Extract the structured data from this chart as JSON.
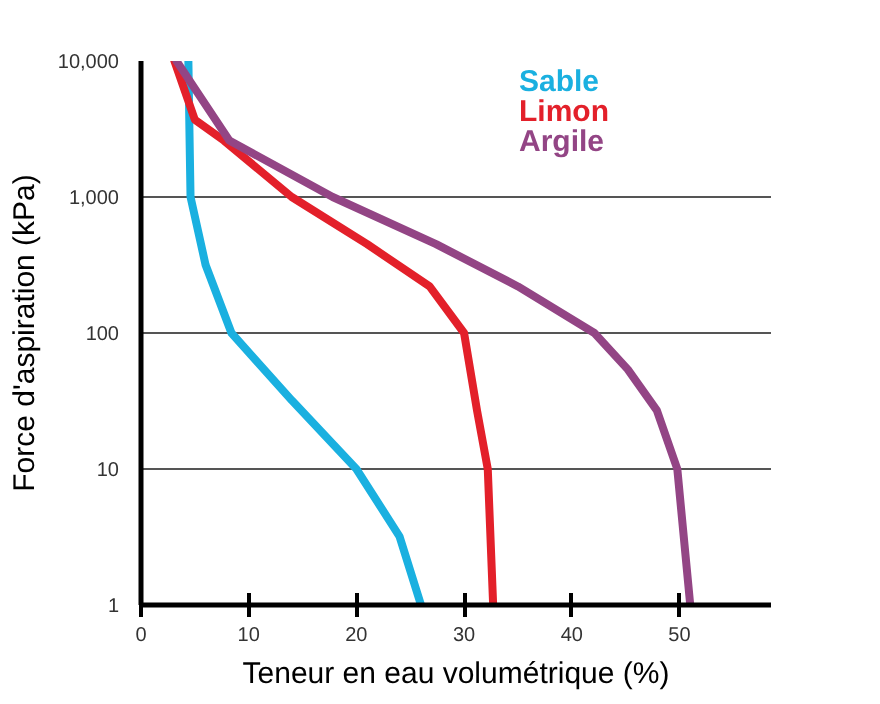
{
  "chart_data": {
    "type": "line",
    "xlabel": "Teneur en eau volumétrique (%)",
    "ylabel": "Force d'aspiration (kPa)",
    "log": "y",
    "grid": "y",
    "xlim": [
      0,
      58.5
    ],
    "ylim": [
      1,
      10000
    ],
    "xticks": [
      0,
      10,
      20,
      30,
      40,
      50
    ],
    "yticks": [
      1,
      10,
      100,
      {
        "value": 1000,
        "label": "1,000"
      },
      {
        "value": 10000,
        "label": "10,000"
      }
    ],
    "line_style": "solid",
    "series": [
      {
        "name": "Sable",
        "color": "#1ab0e0",
        "x": [
          4.4,
          4.5,
          4.6,
          6,
          8.4,
          14,
          20,
          24,
          26
        ],
        "values": [
          10000,
          3000,
          1000,
          316,
          100,
          32,
          10,
          3.2,
          1
        ]
      },
      {
        "name": "Limon",
        "color": "#e3202a",
        "x": [
          3.1,
          5.0,
          7.7,
          14,
          21,
          26.8,
          30,
          31.2,
          32.2,
          32.7
        ],
        "values": [
          10000,
          3700,
          2600,
          1000,
          450,
          220,
          100,
          27,
          10,
          1
        ]
      },
      {
        "name": "Argile",
        "color": "#934585",
        "x": [
          3.3,
          8.2,
          17.8,
          27.4,
          35,
          42.1,
          45.2,
          47.9,
          49.8,
          51
        ],
        "values": [
          10000,
          2600,
          1000,
          450,
          220,
          100,
          54,
          27,
          10,
          1
        ]
      }
    ]
  }
}
